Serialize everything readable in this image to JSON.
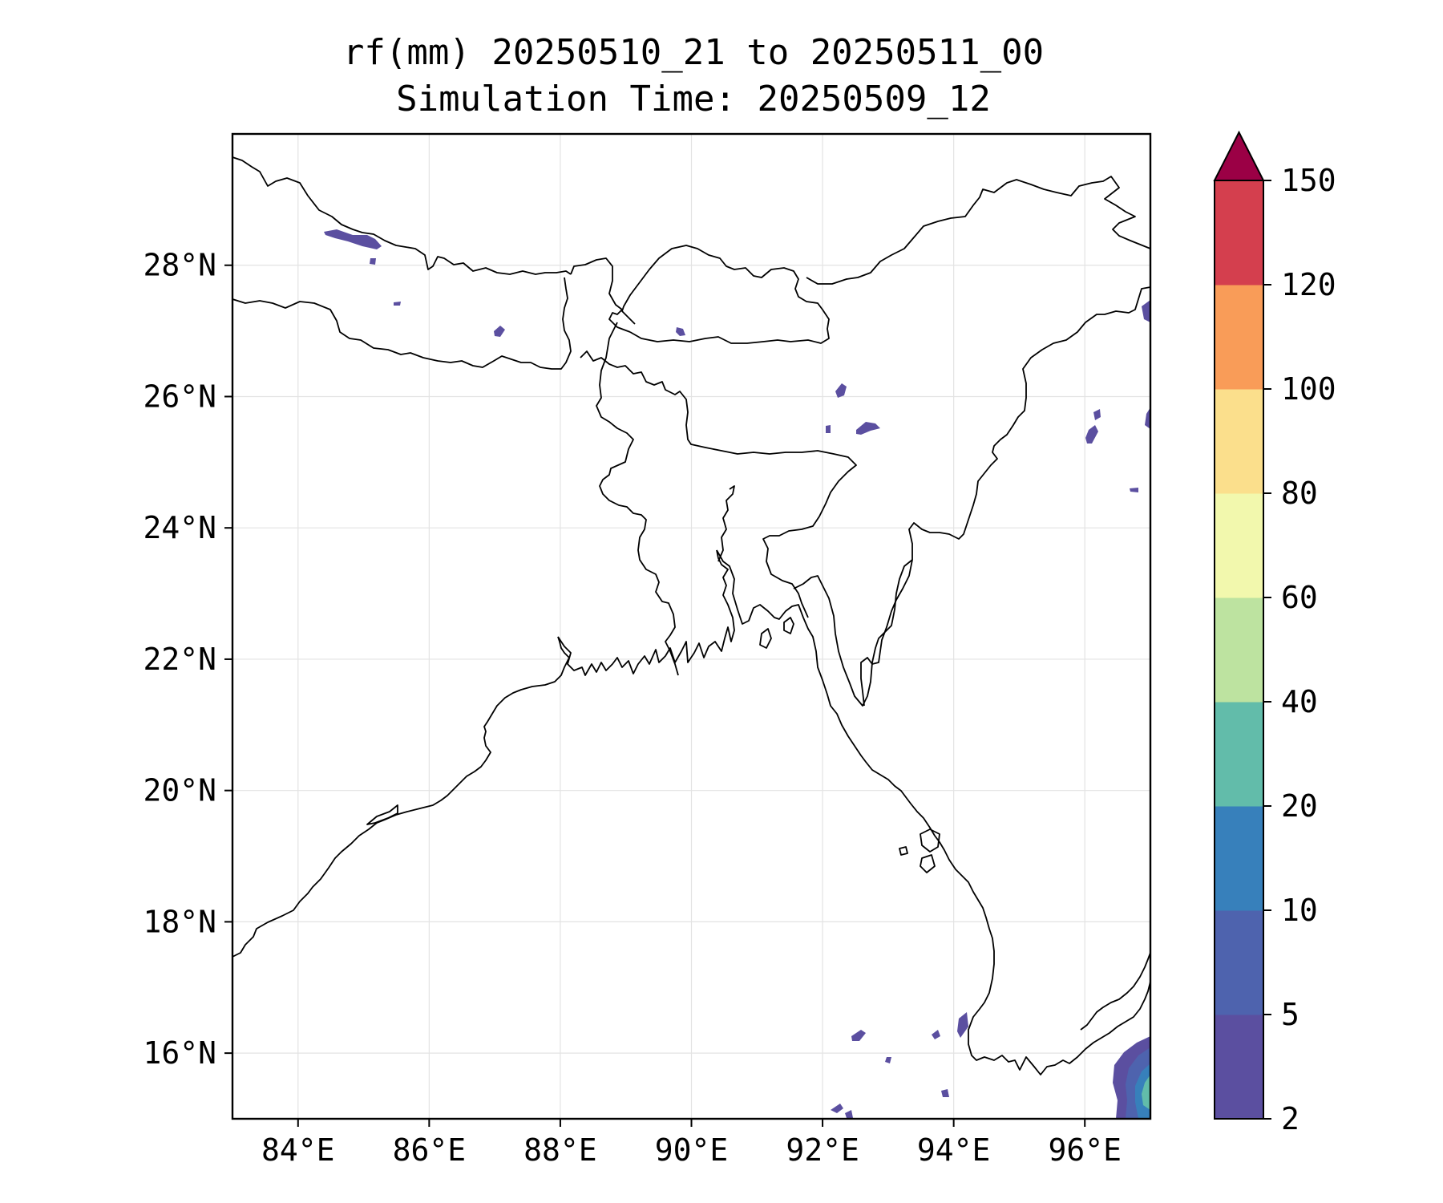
{
  "title": {
    "line1": "rf(mm) 20250510_21 to 20250511_00",
    "line2": "Simulation Time: 20250509_12"
  },
  "map": {
    "lon_range": [
      83,
      97
    ],
    "lat_range": [
      15,
      30
    ],
    "lon_ticks": [
      {
        "value": 84,
        "label": "84°E"
      },
      {
        "value": 86,
        "label": "86°E"
      },
      {
        "value": 88,
        "label": "88°E"
      },
      {
        "value": 90,
        "label": "90°E"
      },
      {
        "value": 92,
        "label": "92°E"
      },
      {
        "value": 94,
        "label": "94°E"
      },
      {
        "value": 96,
        "label": "96°E"
      }
    ],
    "lat_ticks": [
      {
        "value": 16,
        "label": "16°N"
      },
      {
        "value": 18,
        "label": "18°N"
      },
      {
        "value": 20,
        "label": "20°N"
      },
      {
        "value": 22,
        "label": "22°N"
      },
      {
        "value": 24,
        "label": "24°N"
      },
      {
        "value": 26,
        "label": "26°N"
      },
      {
        "value": 28,
        "label": "28°N"
      }
    ],
    "gridlines": true,
    "rain_patches": [
      {
        "region": "Nepal",
        "level": "2-5"
      },
      {
        "region": "Bhutan",
        "level": "2-5"
      },
      {
        "region": "Meghalaya / Assam",
        "level": "2-5"
      },
      {
        "region": "Manipur / Nagaland",
        "level": "2-5"
      },
      {
        "region": "Andaman Sea",
        "level": "2-5"
      },
      {
        "region": "Southern Myanmar",
        "level": "2-20"
      }
    ]
  },
  "colorbar": {
    "extend": "max",
    "levels": [
      {
        "label": "2",
        "color": "#5b4fa0"
      },
      {
        "label": "5",
        "color": "#4e63ae"
      },
      {
        "label": "10",
        "color": "#3780bb"
      },
      {
        "label": "20",
        "color": "#62bcaa"
      },
      {
        "label": "40",
        "color": "#bde3a0"
      },
      {
        "label": "60",
        "color": "#f2f8ad"
      },
      {
        "label": "80",
        "color": "#fbdf8c"
      },
      {
        "label": "100",
        "color": "#f99c58"
      },
      {
        "label": "120",
        "color": "#d43f4e"
      },
      {
        "label": "150",
        "color": "#9b0045"
      }
    ]
  }
}
